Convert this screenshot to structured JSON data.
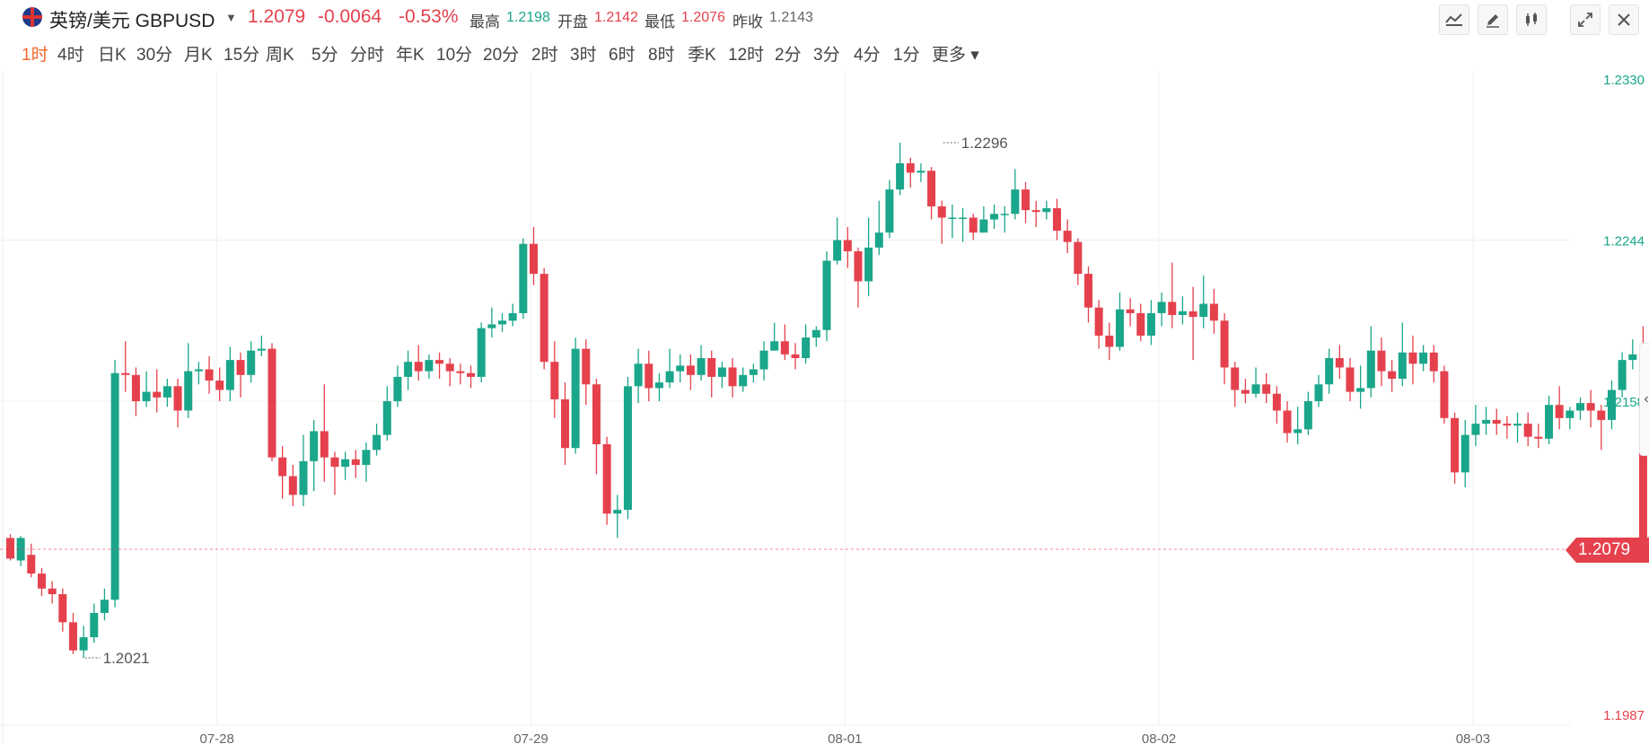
{
  "header": {
    "title": "英镑/美元 GBPUSD",
    "price": "1.2079",
    "change": "-0.0064",
    "change_pct": "-0.53%",
    "stats": [
      {
        "label": "最高",
        "value": "1.2198",
        "color": "#1aa68a"
      },
      {
        "label": "开盘",
        "value": "1.2142",
        "color": "#e5414d"
      },
      {
        "label": "最低",
        "value": "1.2076",
        "color": "#e5414d"
      },
      {
        "label": "昨收",
        "value": "1.2143",
        "color": "#666666"
      }
    ],
    "tools": [
      "line-chart-icon",
      "pencil-icon",
      "candlestick-icon",
      "expand-icon",
      "close-icon"
    ]
  },
  "periods": [
    "1时",
    "4时",
    "日K",
    "30分",
    "月K",
    "15分",
    "周K",
    "5分",
    "分时",
    "年K",
    "10分",
    "20分",
    "2时",
    "3时",
    "6时",
    "8时",
    "季K",
    "12时",
    "2分",
    "3分",
    "4分",
    "1分",
    "更多"
  ],
  "active_period": "1时",
  "colors": {
    "up": "#1aa68a",
    "down": "#e5414d",
    "grid": "#f0f0f0",
    "axis_up": "#1aa68a",
    "axis_down": "#e5414d"
  },
  "chart_data": {
    "type": "candlestick",
    "y_ticks": [
      "1.2330",
      "1.2244",
      "1.2158",
      "1.1987"
    ],
    "ylim": [
      1.1987,
      1.233
    ],
    "x_ticks": [
      {
        "label": "07-28",
        "index": 20
      },
      {
        "label": "07-29",
        "index": 50
      },
      {
        "label": "08-01",
        "index": 80
      },
      {
        "label": "08-02",
        "index": 110
      },
      {
        "label": "08-03",
        "index": 140
      }
    ],
    "last_price": "1.2079",
    "annotations": [
      {
        "text": "1.2296",
        "index": 89,
        "value": 1.2296
      },
      {
        "text": "1.2021",
        "index": 7,
        "value": 1.2021
      }
    ],
    "candles": [
      [
        1.2085,
        1.2074,
        1.2087,
        1.2073
      ],
      [
        1.2073,
        1.2085,
        1.2086,
        1.207
      ],
      [
        1.2076,
        1.2066,
        1.2082,
        1.2064
      ],
      [
        1.2066,
        1.2058,
        1.2069,
        1.2054
      ],
      [
        1.2058,
        1.2055,
        1.2062,
        1.205
      ],
      [
        1.2055,
        1.204,
        1.2058,
        1.2035
      ],
      [
        1.204,
        1.2025,
        1.2045,
        1.2023
      ],
      [
        1.2025,
        1.2032,
        1.2038,
        1.2021
      ],
      [
        1.2032,
        1.2045,
        1.205,
        1.2029
      ],
      [
        1.2045,
        1.2052,
        1.2058,
        1.2041
      ],
      [
        1.2052,
        1.2173,
        1.218,
        1.2048
      ],
      [
        1.2173,
        1.2172,
        1.219,
        1.2163
      ],
      [
        1.2172,
        1.2158,
        1.2176,
        1.215
      ],
      [
        1.2158,
        1.2163,
        1.2174,
        1.2155
      ],
      [
        1.2163,
        1.216,
        1.2175,
        1.2152
      ],
      [
        1.216,
        1.2166,
        1.217,
        1.2155
      ],
      [
        1.2166,
        1.2153,
        1.217,
        1.2144
      ],
      [
        1.2153,
        1.2174,
        1.2189,
        1.2149
      ],
      [
        1.2174,
        1.2175,
        1.2179,
        1.2167
      ],
      [
        1.2175,
        1.2169,
        1.2182,
        1.2162
      ],
      [
        1.2169,
        1.2164,
        1.2176,
        1.2158
      ],
      [
        1.2164,
        1.218,
        1.2187,
        1.2158
      ],
      [
        1.218,
        1.2172,
        1.2184,
        1.216
      ],
      [
        1.2172,
        1.2185,
        1.219,
        1.2168
      ],
      [
        1.2185,
        1.2186,
        1.2193,
        1.2182
      ],
      [
        1.2186,
        1.2128,
        1.2189,
        1.2126
      ],
      [
        1.2128,
        1.2118,
        1.2134,
        1.2106
      ],
      [
        1.2118,
        1.2108,
        1.2124,
        1.2102
      ],
      [
        1.2108,
        1.2126,
        1.214,
        1.2102
      ],
      [
        1.2126,
        1.2142,
        1.2148,
        1.211
      ],
      [
        1.2142,
        1.2128,
        1.2167,
        1.2115
      ],
      [
        1.2128,
        1.2123,
        1.2131,
        1.2108
      ],
      [
        1.2123,
        1.2127,
        1.2131,
        1.2116
      ],
      [
        1.2127,
        1.2124,
        1.2132,
        1.2117
      ],
      [
        1.2124,
        1.2132,
        1.2136,
        1.2115
      ],
      [
        1.2132,
        1.214,
        1.2146,
        1.2129
      ],
      [
        1.214,
        1.2158,
        1.2166,
        1.2137
      ],
      [
        1.2158,
        1.2171,
        1.2177,
        1.2155
      ],
      [
        1.2171,
        1.2179,
        1.2185,
        1.2164
      ],
      [
        1.2179,
        1.2174,
        1.2188,
        1.2169
      ],
      [
        1.2174,
        1.218,
        1.2183,
        1.217
      ],
      [
        1.218,
        1.2178,
        1.2184,
        1.217
      ],
      [
        1.2178,
        1.2174,
        1.2181,
        1.2166
      ],
      [
        1.2174,
        1.2173,
        1.2178,
        1.2167
      ],
      [
        1.2173,
        1.2171,
        1.2177,
        1.2165
      ],
      [
        1.2171,
        1.2197,
        1.22,
        1.2168
      ],
      [
        1.2197,
        1.2199,
        1.2208,
        1.2192
      ],
      [
        1.2199,
        1.2201,
        1.2205,
        1.2195
      ],
      [
        1.2201,
        1.2205,
        1.221,
        1.2198
      ],
      [
        1.2205,
        1.2242,
        1.2245,
        1.2202
      ],
      [
        1.2242,
        1.2226,
        1.2251,
        1.222
      ],
      [
        1.2226,
        1.2179,
        1.2229,
        1.2175
      ],
      [
        1.2179,
        1.2159,
        1.219,
        1.2149
      ],
      [
        1.2159,
        1.2133,
        1.2168,
        1.2124
      ],
      [
        1.2133,
        1.2186,
        1.2192,
        1.213
      ],
      [
        1.2186,
        1.2167,
        1.2191,
        1.2156
      ],
      [
        1.2167,
        1.2135,
        1.217,
        1.2119
      ],
      [
        1.2135,
        1.2098,
        1.2139,
        1.2092
      ],
      [
        1.2098,
        1.21,
        1.2108,
        1.2085
      ],
      [
        1.21,
        1.2166,
        1.2171,
        1.2095
      ],
      [
        1.2166,
        1.2178,
        1.2186,
        1.2157
      ],
      [
        1.2178,
        1.2165,
        1.2185,
        1.2158
      ],
      [
        1.2165,
        1.2168,
        1.2173,
        1.2158
      ],
      [
        1.2168,
        1.2174,
        1.2186,
        1.2165
      ],
      [
        1.2174,
        1.2177,
        1.2183,
        1.2168
      ],
      [
        1.2177,
        1.2172,
        1.2183,
        1.2164
      ],
      [
        1.2172,
        1.2181,
        1.2188,
        1.2169
      ],
      [
        1.2181,
        1.2171,
        1.2185,
        1.216
      ],
      [
        1.2171,
        1.2176,
        1.2179,
        1.2165
      ],
      [
        1.2176,
        1.2166,
        1.2181,
        1.216
      ],
      [
        1.2166,
        1.2172,
        1.2176,
        1.2163
      ],
      [
        1.2172,
        1.2175,
        1.2178,
        1.2168
      ],
      [
        1.2175,
        1.2185,
        1.219,
        1.2169
      ],
      [
        1.2185,
        1.219,
        1.22,
        1.2185
      ],
      [
        1.219,
        1.2183,
        1.2199,
        1.218
      ],
      [
        1.2183,
        1.2181,
        1.2189,
        1.2175
      ],
      [
        1.2181,
        1.2192,
        1.2199,
        1.2178
      ],
      [
        1.2192,
        1.2196,
        1.2198,
        1.2187
      ],
      [
        1.2196,
        1.2233,
        1.2238,
        1.219
      ],
      [
        1.2233,
        1.2244,
        1.2256,
        1.2231
      ],
      [
        1.2244,
        1.2238,
        1.2251,
        1.2229
      ],
      [
        1.2238,
        1.2222,
        1.224,
        1.2208
      ],
      [
        1.2222,
        1.224,
        1.2256,
        1.2214
      ],
      [
        1.224,
        1.2248,
        1.2265,
        1.2236
      ],
      [
        1.2248,
        1.2271,
        1.2276,
        1.2245
      ],
      [
        1.2271,
        1.2285,
        1.2296,
        1.2268
      ],
      [
        1.2285,
        1.228,
        1.2288,
        1.2272
      ],
      [
        1.228,
        1.2281,
        1.2285,
        1.2275
      ],
      [
        1.2281,
        1.2262,
        1.2283,
        1.2255
      ],
      [
        1.2262,
        1.2256,
        1.2265,
        1.2242
      ],
      [
        1.2256,
        1.2256,
        1.2263,
        1.2245
      ],
      [
        1.2256,
        1.2256,
        1.2261,
        1.2243
      ],
      [
        1.2256,
        1.2248,
        1.2258,
        1.2244
      ],
      [
        1.2248,
        1.2255,
        1.2262,
        1.2248
      ],
      [
        1.2255,
        1.2258,
        1.2263,
        1.225
      ],
      [
        1.2258,
        1.2258,
        1.2262,
        1.2248
      ],
      [
        1.2258,
        1.2271,
        1.2282,
        1.2255
      ],
      [
        1.2271,
        1.226,
        1.2275,
        1.2253
      ],
      [
        1.226,
        1.2259,
        1.2265,
        1.2251
      ],
      [
        1.2259,
        1.2261,
        1.2265,
        1.2255
      ],
      [
        1.2261,
        1.2249,
        1.2266,
        1.2244
      ],
      [
        1.2249,
        1.2243,
        1.2255,
        1.2237
      ],
      [
        1.2243,
        1.2226,
        1.2245,
        1.222
      ],
      [
        1.2226,
        1.2208,
        1.223,
        1.22
      ],
      [
        1.2208,
        1.2193,
        1.2212,
        1.2186
      ],
      [
        1.2193,
        1.2187,
        1.22,
        1.218
      ],
      [
        1.2187,
        1.2207,
        1.2216,
        1.2185
      ],
      [
        1.2207,
        1.2205,
        1.2213,
        1.2198
      ],
      [
        1.2205,
        1.2193,
        1.221,
        1.219
      ],
      [
        1.2193,
        1.2205,
        1.2212,
        1.2188
      ],
      [
        1.2205,
        1.2211,
        1.2216,
        1.2198
      ],
      [
        1.2211,
        1.2204,
        1.2232,
        1.2197
      ],
      [
        1.2204,
        1.2206,
        1.2214,
        1.2199
      ],
      [
        1.2206,
        1.2203,
        1.2219,
        1.218
      ],
      [
        1.2203,
        1.221,
        1.2225,
        1.2197
      ],
      [
        1.221,
        1.2201,
        1.2218,
        1.2194
      ],
      [
        1.2201,
        1.2176,
        1.2205,
        1.2167
      ],
      [
        1.2176,
        1.2164,
        1.2179,
        1.2155
      ],
      [
        1.2164,
        1.2162,
        1.217,
        1.2157
      ],
      [
        1.2162,
        1.2167,
        1.2176,
        1.216
      ],
      [
        1.2167,
        1.2162,
        1.2173,
        1.2157
      ],
      [
        1.2162,
        1.2153,
        1.2166,
        1.2146
      ],
      [
        1.2153,
        1.2141,
        1.2158,
        1.2136
      ],
      [
        1.2141,
        1.2143,
        1.2155,
        1.2135
      ],
      [
        1.2143,
        1.2158,
        1.2163,
        1.214
      ],
      [
        1.2158,
        1.2167,
        1.2172,
        1.2155
      ],
      [
        1.2167,
        1.2181,
        1.2186,
        1.2162
      ],
      [
        1.2181,
        1.2176,
        1.2188,
        1.217
      ],
      [
        1.2176,
        1.2163,
        1.2181,
        1.2158
      ],
      [
        1.2163,
        1.2165,
        1.2177,
        1.2154
      ],
      [
        1.2165,
        1.2185,
        1.2198,
        1.216
      ],
      [
        1.2185,
        1.2174,
        1.2192,
        1.2166
      ],
      [
        1.2174,
        1.217,
        1.218,
        1.2163
      ],
      [
        1.217,
        1.2184,
        1.22,
        1.2166
      ],
      [
        1.2184,
        1.2178,
        1.2193,
        1.2167
      ],
      [
        1.2178,
        1.2184,
        1.2188,
        1.2174
      ],
      [
        1.2184,
        1.2174,
        1.2188,
        1.2168
      ],
      [
        1.2174,
        1.2149,
        1.2177,
        1.2146
      ],
      [
        1.2149,
        1.212,
        1.2152,
        1.2114
      ],
      [
        1.212,
        1.214,
        1.2148,
        1.2112
      ],
      [
        1.214,
        1.2146,
        1.2156,
        1.2134
      ],
      [
        1.2146,
        1.2148,
        1.2155,
        1.214
      ],
      [
        1.2148,
        1.2146,
        1.2154,
        1.214
      ],
      [
        1.2146,
        1.2145,
        1.215,
        1.2138
      ],
      [
        1.2145,
        1.2146,
        1.2152,
        1.2136
      ],
      [
        1.2146,
        1.2139,
        1.2152,
        1.2134
      ],
      [
        1.2139,
        1.2138,
        1.2146,
        1.2133
      ],
      [
        1.2138,
        1.2156,
        1.2161,
        1.2135
      ],
      [
        1.2156,
        1.2149,
        1.2166,
        1.2143
      ],
      [
        1.2149,
        1.2153,
        1.2155,
        1.2143
      ],
      [
        1.2153,
        1.2157,
        1.216,
        1.2148
      ],
      [
        1.2157,
        1.2153,
        1.2164,
        1.2144
      ],
      [
        1.2153,
        1.2148,
        1.2156,
        1.2132
      ],
      [
        1.2148,
        1.2164,
        1.2169,
        1.2143
      ],
      [
        1.2164,
        1.218,
        1.2184,
        1.216
      ],
      [
        1.218,
        1.2183,
        1.2191,
        1.2175
      ],
      [
        1.2183,
        1.2079,
        1.2198,
        1.2076
      ]
    ]
  }
}
